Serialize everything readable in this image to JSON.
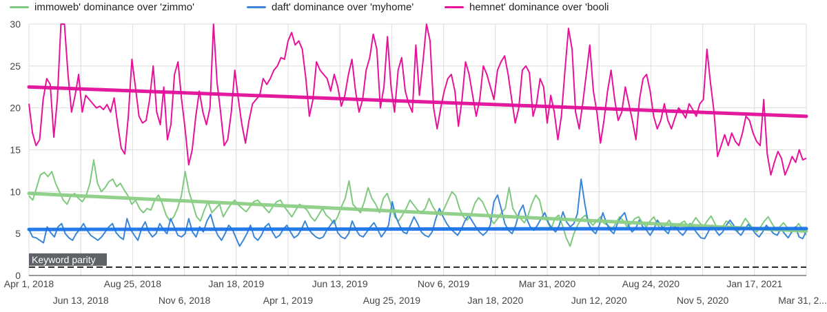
{
  "chart_data": {
    "type": "line",
    "ylim": [
      0,
      30
    ],
    "yticks": [
      "0",
      "5",
      "10",
      "15",
      "20",
      "25",
      "30"
    ],
    "grid": true,
    "legend_position": "top",
    "x_ticks_row1": [
      "Apr 1, 2018",
      "Aug 25, 2018",
      "Jan 18, 2019",
      "Jun 13, 2019",
      "Nov 6, 2019",
      "Mar 31, 2020",
      "Aug 24, 2020",
      "Jan 17, 2021"
    ],
    "x_ticks_row2": [
      "Jun 13, 2018",
      "Nov 6, 2018",
      "Apr 1, 2019",
      "Aug 25, 2019",
      "Jan 18, 2020",
      "Jun 12, 2020",
      "Nov 5, 2020",
      "Mar 31, 2..."
    ],
    "reference_line": {
      "label": "Keyword parity",
      "value": 1,
      "color": "#222222"
    },
    "series": [
      {
        "name": "immoweb' dominance over 'zimmo'",
        "color": "#7fc97f",
        "trend_color": "#8ccf86",
        "trend": [
          9.8,
          5.3
        ],
        "values": [
          9.5,
          9,
          10.5,
          12,
          12.3,
          11.8,
          12.4,
          11,
          10,
          9,
          8.5,
          9.5,
          9.8,
          9.2,
          8.8,
          9.5,
          11,
          13.8,
          11,
          10,
          10.5,
          11.2,
          11.5,
          10.6,
          11,
          10.2,
          9.5,
          8.5,
          9,
          8,
          7.5,
          8,
          7.8,
          9,
          9.6,
          8.6,
          7.2,
          6.5,
          7,
          8,
          9.5,
          12.4,
          10,
          8.5,
          7,
          6.5,
          7.8,
          8.8,
          7.5,
          8,
          8.5,
          7,
          7.8,
          8.5,
          9,
          8.4,
          8,
          7.6,
          8.2,
          8.8,
          9,
          8.5,
          8,
          7.5,
          8.2,
          8.8,
          9,
          8.2,
          7.6,
          7,
          7.8,
          8.5,
          8.2,
          7.8,
          7,
          6.5,
          7.2,
          8,
          7.2,
          6.8,
          6.2,
          7,
          8.2,
          9.2,
          11.3,
          8.5,
          8,
          7.5,
          8.8,
          10.5,
          9.2,
          8.5,
          7.5,
          9.2,
          9.8,
          8.5,
          7,
          6.5,
          7.2,
          8,
          9,
          8.4,
          7.8,
          7.5,
          8,
          9.2,
          8.2,
          7.5,
          7.2,
          8,
          9,
          10,
          9.5,
          8,
          7,
          6.6,
          7.2,
          8.6,
          9.3,
          8.8,
          7.8,
          6.8,
          6.2,
          6.8,
          7.5,
          8,
          10.5,
          8,
          7.2,
          6.8,
          6.3,
          7.2,
          8.6,
          9.6,
          9,
          7,
          6.5,
          5.5,
          6.8,
          7.2,
          6,
          4.5,
          3.5,
          5,
          6,
          6.8,
          7.2,
          6.5,
          6,
          6.5,
          7,
          6.2,
          6,
          5.5,
          6.2,
          7,
          6.5,
          5.8,
          6.2,
          6.8,
          7,
          6.3,
          5.8,
          6.5,
          7,
          6,
          5.5,
          6,
          6.6,
          5.8,
          5.6,
          6.2,
          6.5,
          5.8,
          6.2,
          6.9,
          6.3,
          5.8,
          6.5,
          7.1,
          6.2,
          5.4,
          5.8,
          6.5,
          6.2,
          5.5,
          5.2,
          6,
          6.8,
          6.2,
          5.6,
          5.2,
          5.8,
          6.5,
          7,
          6.2,
          5.5,
          5.8,
          6.3,
          5.7,
          5.2,
          5.6,
          6.2,
          5.5,
          4.8
        ]
      },
      {
        "name": "daft' dominance over 'myhome'",
        "color": "#3a86d6",
        "trend_color": "#1a73e8",
        "trend": [
          5.5,
          5.6
        ],
        "values": [
          5.5,
          4.6,
          4.5,
          4.2,
          3.9,
          5.8,
          5.1,
          4.6,
          5.8,
          6.2,
          5,
          4.5,
          4.2,
          5,
          5.5,
          6.2,
          5.4,
          4.8,
          4.5,
          4.2,
          4.6,
          5.2,
          5.8,
          6.2,
          5.1,
          4.6,
          4.3,
          6.8,
          5.5,
          4.8,
          4.2,
          5.6,
          6.4,
          5.2,
          4.6,
          5,
          6.2,
          5.5,
          5,
          6.8,
          5.8,
          4.8,
          4.6,
          5,
          6.8,
          5.2,
          4.6,
          5.8,
          5.2,
          6.5,
          7.3,
          5.8,
          4.8,
          4.2,
          5,
          6,
          5.5,
          4.5,
          3.5,
          4.2,
          5,
          6,
          4.6,
          4.2,
          4.8,
          5.8,
          6.2,
          5.2,
          4.5,
          4.8,
          5.5,
          6,
          5.2,
          4.5,
          4.8,
          5.5,
          6.5,
          5.5,
          5,
          4.6,
          4.4,
          4.6,
          5.4,
          6,
          6.6,
          5.1,
          4.6,
          4.4,
          5,
          6.5,
          5.5,
          4.8,
          4.6,
          5.2,
          5.8,
          6.3,
          5.5,
          4.6,
          5.2,
          6,
          8.8,
          7,
          6,
          5.2,
          5,
          6,
          7,
          6.2,
          5.2,
          4.8,
          4.6,
          5.2,
          6.8,
          8,
          7,
          6.2,
          5.6,
          5.2,
          4.8,
          5.5,
          6.5,
          7.2,
          6.5,
          5.8,
          5.2,
          4.8,
          5.2,
          6,
          8.8,
          9.6,
          8,
          6.2,
          5.4,
          5,
          6,
          7.6,
          8.4,
          6.8,
          5.8,
          5.4,
          6,
          6.8,
          7.5,
          6.3,
          5.6,
          5.2,
          6,
          7.6,
          6.4,
          5.8,
          6.2,
          7.4,
          11.5,
          8.6,
          6.2,
          5.4,
          5,
          6,
          7.5,
          6.2,
          5.4,
          5,
          6.2,
          7,
          7.5,
          6,
          5.2,
          5.6,
          6.6,
          5.8,
          5.4,
          4.8,
          5.5,
          6.6,
          6,
          5.4,
          5,
          6.2,
          5.8,
          5.2,
          4.8,
          5.4,
          6.2,
          5.6,
          5,
          4.5,
          4.4,
          5.2,
          6,
          5.4,
          4.8,
          5.2,
          6,
          6.6,
          6,
          5.2,
          4.8,
          5.5,
          6.1,
          5.6,
          5,
          4.6,
          5.2,
          6,
          5.5,
          5,
          4.8,
          5.6,
          5,
          4.5,
          5.2,
          5.8,
          4.6,
          4.4,
          5.3
        ]
      },
      {
        "name": "hemnet' dominance over 'booli",
        "color": "#e8109a",
        "trend_color": "#e20e99",
        "trend": [
          22.5,
          19.0
        ],
        "values": [
          20.5,
          17,
          15.5,
          16.2,
          21,
          23.5,
          22.8,
          16.5,
          21,
          30,
          30,
          24,
          19.5,
          21.5,
          24,
          19.5,
          21.5,
          21,
          20.5,
          20,
          20.2,
          19.8,
          20.4,
          19.5,
          21.2,
          18,
          15.2,
          14.5,
          19,
          25.8,
          22.5,
          19,
          18.2,
          18.5,
          21,
          25,
          19.5,
          18,
          22.5,
          16.2,
          18,
          24,
          25.5,
          21,
          17.5,
          13.2,
          15,
          19,
          22,
          19.5,
          18,
          20,
          30,
          23,
          19.5,
          15.5,
          16.2,
          19.5,
          24.5,
          21,
          18,
          15.8,
          18.5,
          20.5,
          21,
          21.5,
          23.5,
          22.8,
          23.5,
          24.5,
          25,
          26,
          25.8,
          28,
          29,
          27.5,
          28,
          27,
          23.5,
          19,
          21,
          25.5,
          24.5,
          24,
          23.5,
          22,
          24,
          22.5,
          20.2,
          21.5,
          24,
          25.8,
          22,
          19.5,
          21,
          24.5,
          26,
          28.8,
          27,
          20,
          22.5,
          28.5,
          22.5,
          19.5,
          24.5,
          26,
          22,
          20.5,
          19.5,
          27.5,
          21.5,
          25.5,
          30,
          28,
          20,
          17.5,
          20,
          22,
          23.5,
          24,
          22,
          17.8,
          21,
          25.5,
          24,
          21.5,
          19,
          21,
          25,
          24,
          22.5,
          21,
          24.5,
          25.5,
          26.2,
          24,
          21,
          18.2,
          20,
          24.5,
          25,
          24.2,
          19,
          20.5,
          23.5,
          22.5,
          18.2,
          21.5,
          19.5,
          16.2,
          19,
          24.5,
          29.5,
          27,
          19.5,
          17.5,
          20.5,
          24,
          27.5,
          22,
          19.5,
          15.8,
          18.5,
          22,
          24.5,
          21,
          18.5,
          19.5,
          22.5,
          20.5,
          18.5,
          16.2,
          21,
          23.5,
          24,
          22,
          19,
          17.5,
          18.5,
          20.5,
          18.5,
          17.5,
          18.8,
          20,
          19.5,
          18.8,
          20.5,
          19.8,
          19,
          20.5,
          21,
          27,
          23,
          19.5,
          14.2,
          15.5,
          16.8,
          15.5,
          17,
          16,
          15.5,
          17,
          19,
          18.5,
          17,
          16,
          15.5,
          21,
          14.5,
          12,
          13.5,
          14.8,
          14,
          12,
          13,
          14.2,
          13.5,
          15,
          13.8,
          14
        ]
      }
    ]
  }
}
